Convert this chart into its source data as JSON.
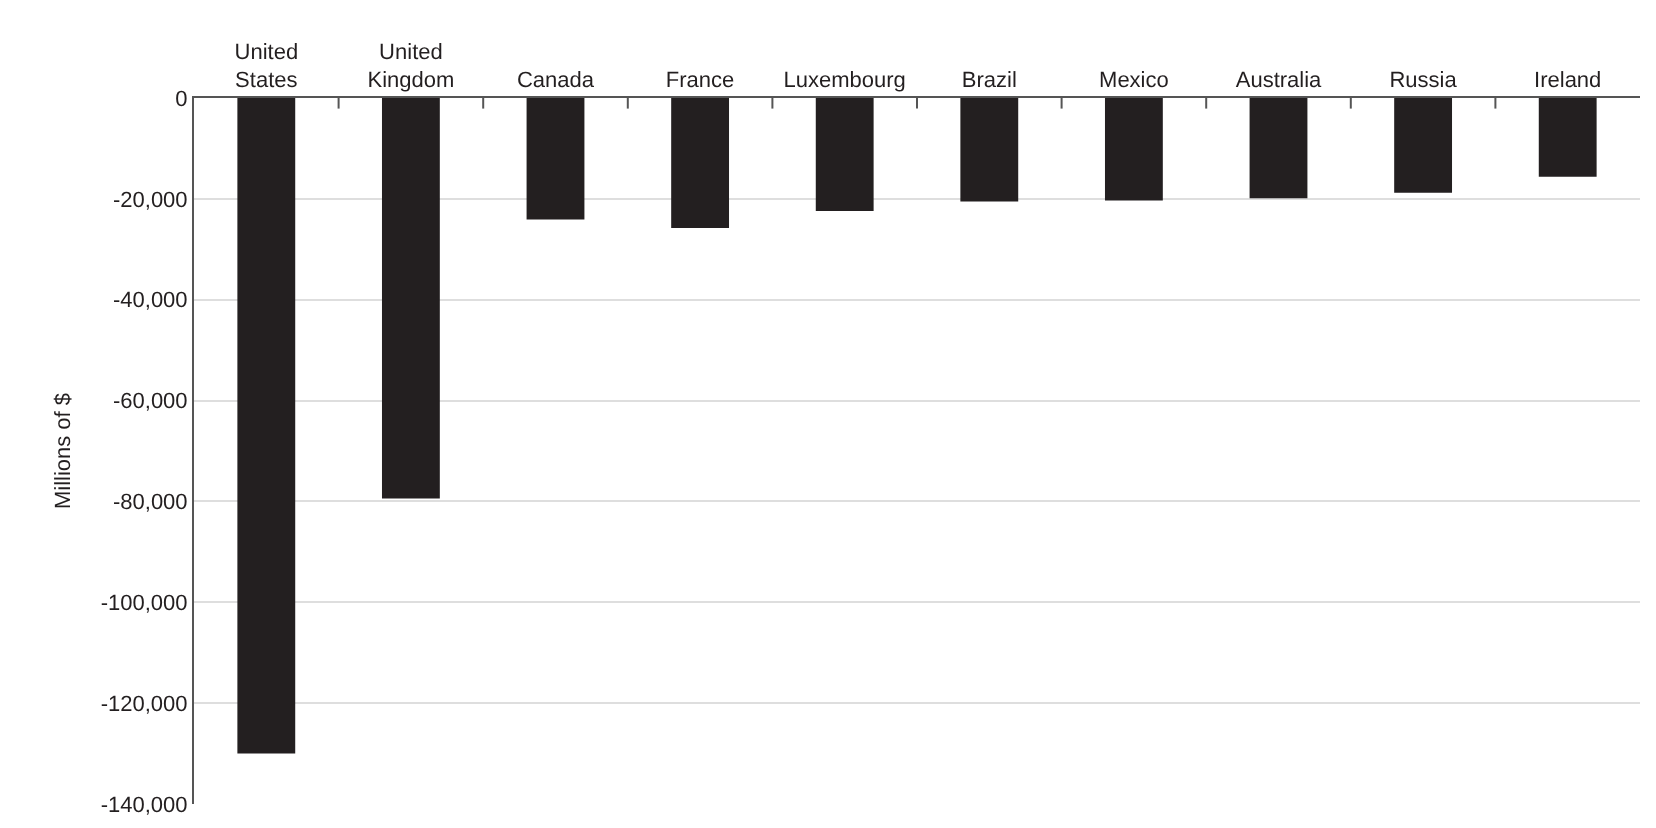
{
  "chart_data": {
    "type": "bar",
    "ylabel": "Millions of $",
    "categories": [
      "United States",
      "United Kingdom",
      "Canada",
      "France",
      "Luxembourg",
      "Brazil",
      "Mexico",
      "Australia",
      "Russia",
      "Ireland"
    ],
    "values": [
      -130000,
      -79400,
      -24100,
      -25800,
      -22400,
      -20500,
      -20300,
      -19900,
      -18800,
      -15600
    ],
    "color": "#231f20",
    "ylim": [
      -140000,
      0
    ],
    "yticks": [
      {
        "value": -140000,
        "label": "-140,000"
      },
      {
        "value": -120000,
        "label": "-120,000"
      },
      {
        "value": -100000,
        "label": "-100,000"
      },
      {
        "value": -80000,
        "label": "-80,000"
      },
      {
        "value": -60000,
        "label": "-60,000"
      },
      {
        "value": -40000,
        "label": "-40,000"
      },
      {
        "value": -20000,
        "label": "-20,000"
      },
      0
    ],
    "grid": "y"
  }
}
